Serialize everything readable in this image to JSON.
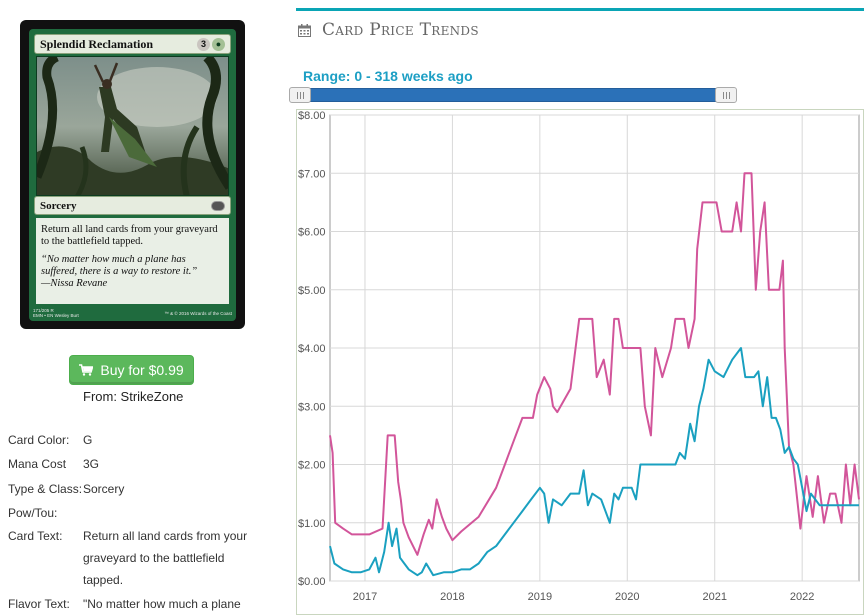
{
  "card": {
    "name": "Splendid Reclamation",
    "cost_generic": "3",
    "type_line": "Sorcery",
    "rules_text": "Return all land cards from your graveyard to the battlefield tapped.",
    "flavor_text": "“No matter how much a plane has suffered, there is a way to restore it.”",
    "flavor_attribution": "—Nissa Revane",
    "collector_line": "171/205  R",
    "set_line": "EMN • EN",
    "artist": "Wesley Burt",
    "copyright": "™ & © 2016 Wizards of the Coast"
  },
  "buy": {
    "label": "Buy for $0.99",
    "from": "From: StrikeZone",
    "icon": "shopping-cart-icon"
  },
  "details": [
    {
      "label": "Card Color:",
      "value": "G"
    },
    {
      "label": "Mana Cost",
      "value": "3G"
    },
    {
      "label": "Type & Class:",
      "value": "Sorcery"
    },
    {
      "label": "Pow/Tou:",
      "value": ""
    },
    {
      "label": "Card Text:",
      "value": "Return all land cards from your graveyard to the battlefield tapped."
    },
    {
      "label": "Flavor Text:",
      "value": "\"No matter how much a plane"
    }
  ],
  "trends": {
    "title": "Card Price Trends",
    "icon": "calendar-icon",
    "range_label": "Range: 0 - 318 weeks ago",
    "accent": "#0aa5b5"
  },
  "chart_data": {
    "type": "line",
    "ylim": [
      0,
      8
    ],
    "yticks": [
      "$0.00",
      "$1.00",
      "$2.00",
      "$3.00",
      "$4.00",
      "$5.00",
      "$6.00",
      "$7.00",
      "$8.00"
    ],
    "xticks": [
      "2017",
      "2018",
      "2019",
      "2020",
      "2021",
      "2022"
    ],
    "xlim": [
      2016.6,
      2022.65
    ],
    "grid": true,
    "series": [
      {
        "color": "#d2559a",
        "points": [
          [
            2016.6,
            2.5
          ],
          [
            2016.63,
            2.2
          ],
          [
            2016.66,
            1.0
          ],
          [
            2016.75,
            0.9
          ],
          [
            2016.85,
            0.8
          ],
          [
            2016.95,
            0.8
          ],
          [
            2017.05,
            0.8
          ],
          [
            2017.2,
            0.9
          ],
          [
            2017.26,
            2.5
          ],
          [
            2017.34,
            2.5
          ],
          [
            2017.38,
            1.7
          ],
          [
            2017.41,
            1.4
          ],
          [
            2017.44,
            1.0
          ],
          [
            2017.5,
            0.75
          ],
          [
            2017.6,
            0.45
          ],
          [
            2017.67,
            0.8
          ],
          [
            2017.73,
            1.05
          ],
          [
            2017.77,
            0.9
          ],
          [
            2017.82,
            1.4
          ],
          [
            2017.88,
            1.1
          ],
          [
            2017.93,
            0.9
          ],
          [
            2018.0,
            0.7
          ],
          [
            2018.1,
            0.85
          ],
          [
            2018.3,
            1.1
          ],
          [
            2018.5,
            1.6
          ],
          [
            2018.6,
            2.0
          ],
          [
            2018.7,
            2.4
          ],
          [
            2018.8,
            2.8
          ],
          [
            2018.92,
            2.8
          ],
          [
            2018.97,
            3.2
          ],
          [
            2019.05,
            3.5
          ],
          [
            2019.12,
            3.3
          ],
          [
            2019.15,
            3.0
          ],
          [
            2019.2,
            2.9
          ],
          [
            2019.35,
            3.3
          ],
          [
            2019.45,
            4.5
          ],
          [
            2019.6,
            4.5
          ],
          [
            2019.65,
            3.5
          ],
          [
            2019.73,
            3.8
          ],
          [
            2019.8,
            3.2
          ],
          [
            2019.85,
            4.5
          ],
          [
            2019.9,
            4.5
          ],
          [
            2019.95,
            4.0
          ],
          [
            2020.15,
            4.0
          ],
          [
            2020.2,
            3.0
          ],
          [
            2020.27,
            2.5
          ],
          [
            2020.32,
            4.0
          ],
          [
            2020.4,
            3.5
          ],
          [
            2020.5,
            4.0
          ],
          [
            2020.55,
            4.5
          ],
          [
            2020.65,
            4.5
          ],
          [
            2020.7,
            4.0
          ],
          [
            2020.77,
            4.5
          ],
          [
            2020.8,
            5.7
          ],
          [
            2020.86,
            6.5
          ],
          [
            2021.02,
            6.5
          ],
          [
            2021.08,
            6.0
          ],
          [
            2021.2,
            6.0
          ],
          [
            2021.25,
            6.5
          ],
          [
            2021.3,
            6.0
          ],
          [
            2021.34,
            7.0
          ],
          [
            2021.42,
            7.0
          ],
          [
            2021.47,
            5.0
          ],
          [
            2021.52,
            6.0
          ],
          [
            2021.57,
            6.5
          ],
          [
            2021.62,
            5.0
          ],
          [
            2021.68,
            5.0
          ],
          [
            2021.74,
            5.0
          ],
          [
            2021.78,
            5.5
          ],
          [
            2021.8,
            4.0
          ],
          [
            2021.85,
            2.3
          ],
          [
            2021.9,
            2.0
          ],
          [
            2021.98,
            0.9
          ],
          [
            2022.05,
            1.8
          ],
          [
            2022.12,
            1.1
          ],
          [
            2022.18,
            1.8
          ],
          [
            2022.25,
            1.0
          ],
          [
            2022.32,
            1.5
          ],
          [
            2022.38,
            1.5
          ],
          [
            2022.45,
            1.0
          ],
          [
            2022.5,
            2.0
          ],
          [
            2022.55,
            1.3
          ],
          [
            2022.6,
            2.0
          ],
          [
            2022.65,
            1.4
          ]
        ]
      },
      {
        "color": "#1aa0c0",
        "points": [
          [
            2016.6,
            0.6
          ],
          [
            2016.65,
            0.3
          ],
          [
            2016.75,
            0.2
          ],
          [
            2016.85,
            0.15
          ],
          [
            2016.95,
            0.15
          ],
          [
            2017.05,
            0.2
          ],
          [
            2017.12,
            0.4
          ],
          [
            2017.16,
            0.15
          ],
          [
            2017.22,
            0.5
          ],
          [
            2017.27,
            1.0
          ],
          [
            2017.31,
            0.6
          ],
          [
            2017.36,
            0.9
          ],
          [
            2017.4,
            0.4
          ],
          [
            2017.45,
            0.3
          ],
          [
            2017.5,
            0.2
          ],
          [
            2017.6,
            0.1
          ],
          [
            2017.65,
            0.15
          ],
          [
            2017.7,
            0.3
          ],
          [
            2017.78,
            0.1
          ],
          [
            2017.9,
            0.15
          ],
          [
            2018.0,
            0.15
          ],
          [
            2018.1,
            0.2
          ],
          [
            2018.2,
            0.2
          ],
          [
            2018.3,
            0.3
          ],
          [
            2018.4,
            0.5
          ],
          [
            2018.5,
            0.6
          ],
          [
            2018.6,
            0.8
          ],
          [
            2018.7,
            1.0
          ],
          [
            2018.8,
            1.2
          ],
          [
            2018.9,
            1.4
          ],
          [
            2019.0,
            1.6
          ],
          [
            2019.05,
            1.5
          ],
          [
            2019.1,
            1.0
          ],
          [
            2019.15,
            1.4
          ],
          [
            2019.25,
            1.3
          ],
          [
            2019.35,
            1.5
          ],
          [
            2019.45,
            1.5
          ],
          [
            2019.5,
            1.9
          ],
          [
            2019.55,
            1.3
          ],
          [
            2019.6,
            1.5
          ],
          [
            2019.7,
            1.4
          ],
          [
            2019.8,
            1.0
          ],
          [
            2019.85,
            1.5
          ],
          [
            2019.9,
            1.4
          ],
          [
            2019.95,
            1.6
          ],
          [
            2020.05,
            1.6
          ],
          [
            2020.1,
            1.4
          ],
          [
            2020.15,
            2.0
          ],
          [
            2020.3,
            2.0
          ],
          [
            2020.45,
            2.0
          ],
          [
            2020.55,
            2.0
          ],
          [
            2020.6,
            2.2
          ],
          [
            2020.66,
            2.1
          ],
          [
            2020.72,
            2.7
          ],
          [
            2020.77,
            2.4
          ],
          [
            2020.82,
            3.0
          ],
          [
            2020.87,
            3.3
          ],
          [
            2020.93,
            3.8
          ],
          [
            2021.0,
            3.6
          ],
          [
            2021.1,
            3.5
          ],
          [
            2021.2,
            3.8
          ],
          [
            2021.3,
            4.0
          ],
          [
            2021.35,
            3.5
          ],
          [
            2021.45,
            3.5
          ],
          [
            2021.5,
            3.6
          ],
          [
            2021.55,
            3.0
          ],
          [
            2021.6,
            3.5
          ],
          [
            2021.65,
            2.8
          ],
          [
            2021.7,
            2.8
          ],
          [
            2021.75,
            2.6
          ],
          [
            2021.8,
            2.2
          ],
          [
            2021.85,
            2.3
          ],
          [
            2021.9,
            2.1
          ],
          [
            2021.95,
            2.0
          ],
          [
            2022.0,
            1.6
          ],
          [
            2022.05,
            1.2
          ],
          [
            2022.1,
            1.5
          ],
          [
            2022.2,
            1.3
          ],
          [
            2022.3,
            1.3
          ],
          [
            2022.4,
            1.3
          ],
          [
            2022.5,
            1.3
          ],
          [
            2022.6,
            1.3
          ],
          [
            2022.65,
            1.3
          ]
        ]
      }
    ]
  }
}
